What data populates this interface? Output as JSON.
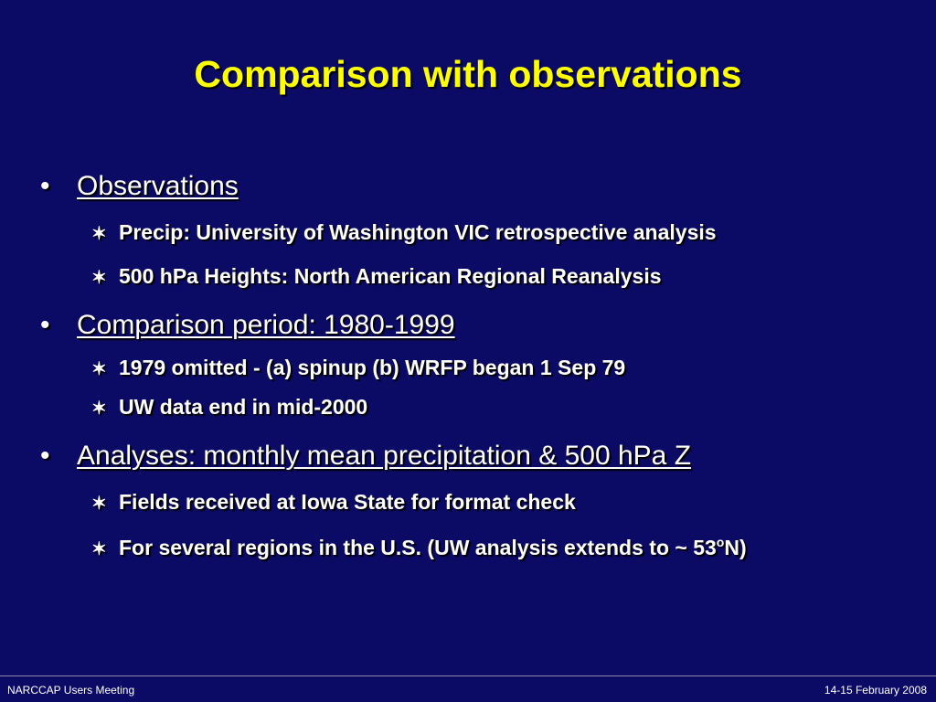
{
  "slide": {
    "title": "Comparison with observations",
    "bullet_glyph": "•",
    "sub_bullet_glyph": "✶",
    "sections": [
      {
        "heading": "Observations",
        "items": [
          "Precip:  University of Washington VIC retrospective analysis",
          "500 hPa Heights:  North American Regional Reanalysis"
        ]
      },
      {
        "heading": "Comparison period: 1980-1999",
        "items": [
          "1979 omitted - (a) spinup (b) WRFP began 1 Sep 79",
          "UW data end in mid-2000"
        ]
      },
      {
        "heading": "Analyses: monthly mean precipitation & 500 hPa Z",
        "items": [
          "Fields received at Iowa State for format check",
          "For several regions in the U.S. (UW analysis extends to ~ 53",
          "o",
          "N)"
        ]
      }
    ]
  },
  "footer": {
    "left": "NARCCAP Users Meeting",
    "right": "14-15 February 2008"
  },
  "colors": {
    "background": "#0b0b66",
    "title": "#ffff00",
    "text": "#ffffff"
  }
}
